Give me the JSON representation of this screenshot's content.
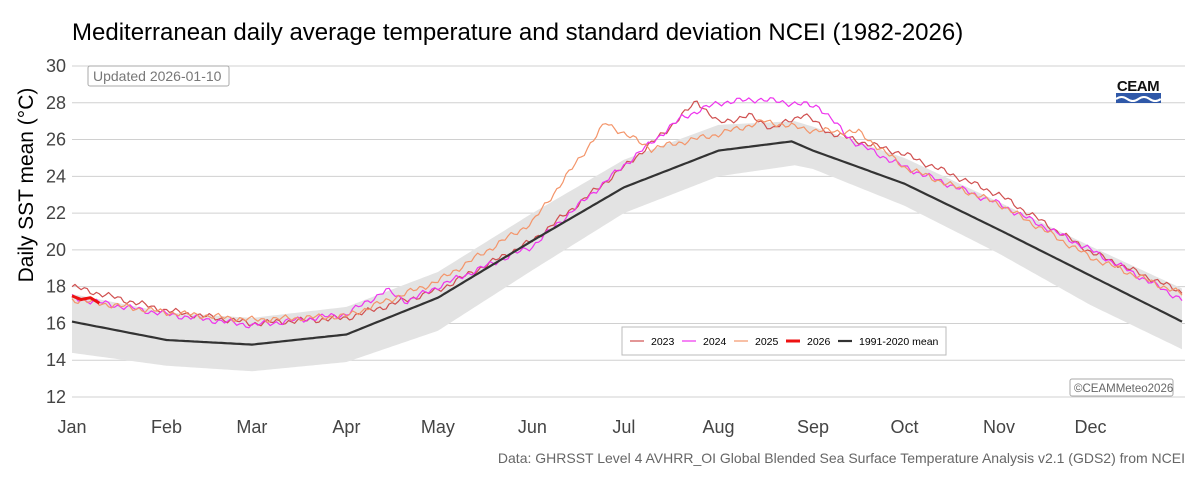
{
  "chart_data": {
    "type": "line",
    "title": "Mediterranean daily average temperature and standard deviation NCEI (1982-2026)",
    "ylabel": "Daily SST mean (°C)",
    "xlabel": "",
    "ylim": [
      12,
      30
    ],
    "yticks": [
      12,
      14,
      16,
      18,
      20,
      22,
      24,
      26,
      28,
      30
    ],
    "xticks": [
      {
        "label": "Jan",
        "day": 0
      },
      {
        "label": "Feb",
        "day": 31
      },
      {
        "label": "Mar",
        "day": 59
      },
      {
        "label": "Apr",
        "day": 90
      },
      {
        "label": "May",
        "day": 120
      },
      {
        "label": "Jun",
        "day": 151
      },
      {
        "label": "Jul",
        "day": 181
      },
      {
        "label": "Aug",
        "day": 212
      },
      {
        "label": "Sep",
        "day": 243
      },
      {
        "label": "Oct",
        "day": 273
      },
      {
        "label": "Nov",
        "day": 304
      },
      {
        "label": "Dec",
        "day": 334
      }
    ],
    "updated": "Updated 2026-01-10",
    "copyright": "©CEAMMeteo2026",
    "source": "Data: GHRSST Level 4 AVHRR_OI Global Blended Sea Surface Temperature Analysis v2.1 (GDS2) from NCEI",
    "logo": "CEAM",
    "legend_position": "bottom-center",
    "band": {
      "name": "±1 standard deviation",
      "color": "#e3e3e3",
      "points": [
        [
          0,
          14.4,
          17.6
        ],
        [
          31,
          13.7,
          16.6
        ],
        [
          59,
          13.4,
          16.3
        ],
        [
          90,
          13.9,
          16.9
        ],
        [
          120,
          15.6,
          18.8
        ],
        [
          151,
          18.9,
          22.0
        ],
        [
          181,
          22.0,
          24.9
        ],
        [
          212,
          24.0,
          26.8
        ],
        [
          237,
          24.6,
          27.0
        ],
        [
          243,
          24.4,
          26.7
        ],
        [
          273,
          22.4,
          25.0
        ],
        [
          304,
          19.8,
          22.6
        ],
        [
          334,
          17.0,
          20.2
        ],
        [
          364,
          14.6,
          17.9
        ]
      ]
    },
    "series": [
      {
        "name": "2023",
        "color": "#d05050",
        "width": 1.2,
        "points": [
          [
            0,
            18.0
          ],
          [
            31,
            16.7
          ],
          [
            59,
            16.0
          ],
          [
            90,
            16.3
          ],
          [
            120,
            17.8
          ],
          [
            151,
            20.5
          ],
          [
            181,
            24.5
          ],
          [
            195,
            26.5
          ],
          [
            205,
            28.1
          ],
          [
            212,
            26.9
          ],
          [
            222,
            27.3
          ],
          [
            230,
            26.6
          ],
          [
            240,
            27.4
          ],
          [
            248,
            26.4
          ],
          [
            273,
            25.2
          ],
          [
            304,
            23.0
          ],
          [
            334,
            19.9
          ],
          [
            364,
            17.7
          ]
        ]
      },
      {
        "name": "2024",
        "color": "#ee33ee",
        "width": 1.2,
        "points": [
          [
            0,
            17.4
          ],
          [
            31,
            16.5
          ],
          [
            59,
            15.9
          ],
          [
            90,
            16.5
          ],
          [
            103,
            17.8
          ],
          [
            110,
            17.2
          ],
          [
            120,
            18.0
          ],
          [
            151,
            20.2
          ],
          [
            181,
            24.6
          ],
          [
            200,
            27.2
          ],
          [
            212,
            28.0
          ],
          [
            225,
            28.2
          ],
          [
            245,
            27.8
          ],
          [
            256,
            25.9
          ],
          [
            273,
            24.5
          ],
          [
            304,
            22.5
          ],
          [
            334,
            20.0
          ],
          [
            364,
            17.3
          ]
        ]
      },
      {
        "name": "2025",
        "color": "#f4956a",
        "width": 1.2,
        "points": [
          [
            0,
            17.3
          ],
          [
            31,
            16.6
          ],
          [
            59,
            16.2
          ],
          [
            90,
            16.4
          ],
          [
            120,
            18.3
          ],
          [
            151,
            21.5
          ],
          [
            175,
            26.9
          ],
          [
            190,
            25.5
          ],
          [
            212,
            26.3
          ],
          [
            227,
            27.0
          ],
          [
            243,
            26.5
          ],
          [
            258,
            26.4
          ],
          [
            273,
            24.5
          ],
          [
            304,
            22.5
          ],
          [
            334,
            19.6
          ],
          [
            364,
            17.6
          ]
        ]
      },
      {
        "name": "2026",
        "color": "#ee1111",
        "width": 3,
        "points": [
          [
            0,
            17.5
          ],
          [
            3,
            17.3
          ],
          [
            6,
            17.4
          ],
          [
            9,
            17.1
          ]
        ]
      },
      {
        "name": "1991-2020 mean",
        "color": "#333333",
        "width": 2.2,
        "points": [
          [
            0,
            16.1
          ],
          [
            31,
            15.1
          ],
          [
            59,
            14.85
          ],
          [
            90,
            15.4
          ],
          [
            120,
            17.4
          ],
          [
            151,
            20.5
          ],
          [
            181,
            23.4
          ],
          [
            212,
            25.4
          ],
          [
            236,
            25.9
          ],
          [
            243,
            25.4
          ],
          [
            273,
            23.6
          ],
          [
            304,
            21.1
          ],
          [
            334,
            18.6
          ],
          [
            364,
            16.1
          ]
        ]
      }
    ]
  }
}
